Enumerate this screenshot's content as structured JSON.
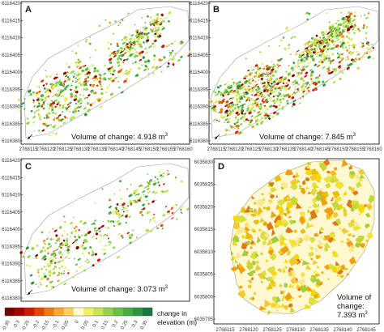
{
  "chart_data": [
    {
      "type": "heatmap",
      "panel": "A",
      "volume_text": "Volume of change: 4.918 m",
      "volume_sup": "3",
      "x_ticks": [
        "2768115",
        "2768120",
        "2768125",
        "2768130",
        "2768135",
        "2768140",
        "2768145",
        "2768150",
        "2768155",
        "2768160"
      ],
      "y_ticks": [
        "6116420",
        "6116415",
        "6116410",
        "6116405",
        "6116400",
        "6116395",
        "6116390",
        "6116385",
        "6116380"
      ]
    },
    {
      "type": "heatmap",
      "panel": "B",
      "volume_text": "Volume of change: 7.845 m",
      "volume_sup": "3",
      "x_ticks": [
        "2768115",
        "2768120",
        "2768125",
        "2768130",
        "2768135",
        "2768140",
        "2768145",
        "2768150",
        "2768155",
        "2768160"
      ],
      "y_ticks": [
        "6116420",
        "6116415",
        "6116410",
        "6116405",
        "6116400",
        "6116395",
        "6116390",
        "6116385",
        "6116380"
      ]
    },
    {
      "type": "heatmap",
      "panel": "C",
      "volume_text": "Volume of change: 3.073 m",
      "volume_sup": "3",
      "x_ticks": [
        "2768115",
        "2768120",
        "2768125",
        "2768130",
        "2768135",
        "2768140",
        "2768145",
        "2768150",
        "2768155",
        "2768160"
      ],
      "y_ticks": [
        "6116420",
        "6116415",
        "6116410",
        "6116405",
        "6116400",
        "6116395",
        "6116390",
        "6116385",
        "6116380"
      ]
    },
    {
      "type": "heatmap",
      "panel": "D",
      "volume_line1": "Volume of",
      "volume_line2": "change:",
      "volume_line3": "7.393 m",
      "volume_sup": "3",
      "x_ticks": [
        "2768115",
        "2768120",
        "2768125",
        "2768130",
        "2768135",
        "2768140",
        "2768145"
      ],
      "y_ticks": [
        "6035830",
        "6035825",
        "6035820",
        "6035815",
        "6035810",
        "6035805",
        "6035800",
        "6035795"
      ]
    }
  ],
  "colorbar": {
    "label_line1": "change in",
    "label_line2": "elevation (m)",
    "ticks": [
      "-0.35",
      "-0.3",
      "-0.25",
      "-0.2",
      "-0.15",
      "-0.1",
      "-0.05",
      "0",
      "0.05",
      "0.1",
      "0.15",
      "0.2",
      "0.25",
      "0.3",
      "0.35"
    ],
    "colors": [
      "#7a0000",
      "#a50000",
      "#c81e00",
      "#e04a00",
      "#f07a10",
      "#f8a830",
      "#fcd060",
      "#fefed0",
      "#f0f060",
      "#c8e450",
      "#98d24a",
      "#6cc046",
      "#48ac42",
      "#2a9540",
      "#127a3a"
    ]
  },
  "colors": {
    "frame": "#000000",
    "outline": "#9aa0a6",
    "panel_bg": "#ffffff"
  },
  "icons": {
    "north_arrow": "north-arrow-icon"
  }
}
